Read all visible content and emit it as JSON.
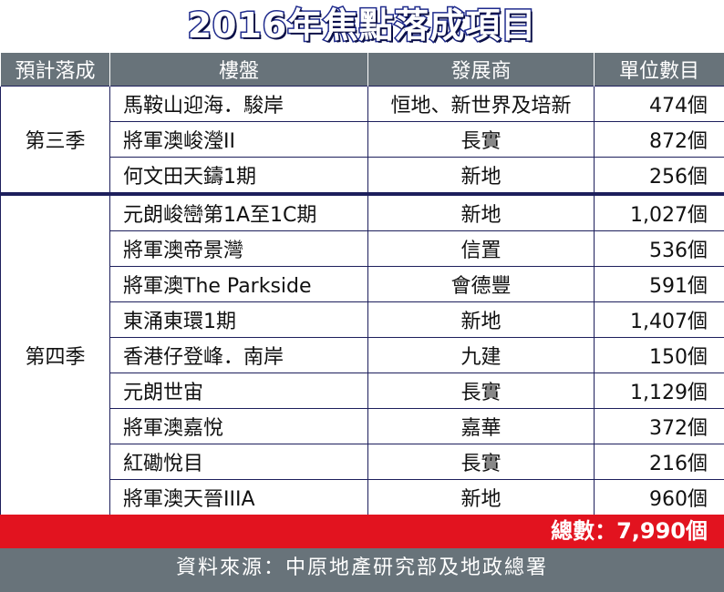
{
  "title": "2016年焦點落成項目",
  "headers": [
    "預計落成",
    "樓盤",
    "發展商",
    "單位數目"
  ],
  "groups": [
    {
      "season": "第三季",
      "rows": [
        {
          "name": "馬鞍山迎海．駿岸",
          "developer": "恒地、新世界及培新",
          "units": "474個"
        },
        {
          "name": "將軍澳峻瀅II",
          "developer": "長實",
          "units": "872個"
        },
        {
          "name": "何文田天鑄1期",
          "developer": "新地",
          "units": "256個"
        }
      ]
    },
    {
      "season": "第四季",
      "rows": [
        {
          "name": "元朗峻巒第1A至1C期",
          "developer": "新地",
          "units": "1,027個"
        },
        {
          "name": "將軍澳帝景灣",
          "developer": "信置",
          "units": "536個"
        },
        {
          "name": "將軍澳The Parkside",
          "developer": "會德豐",
          "units": "591個"
        },
        {
          "name": "東涌東環1期",
          "developer": "新地",
          "units": "1,407個"
        },
        {
          "name": "香港仔登峰．南岸",
          "developer": "九建",
          "units": "150個"
        },
        {
          "name": "元朗世宙",
          "developer": "長實",
          "units": "1,129個"
        },
        {
          "name": "將軍澳嘉悅",
          "developer": "嘉華",
          "units": "372個"
        },
        {
          "name": "紅磡悅目",
          "developer": "長實",
          "units": "216個"
        },
        {
          "name": "將軍澳天晉IIIA",
          "developer": "新地",
          "units": "960個"
        }
      ]
    }
  ],
  "total": "總數：7,990個",
  "source": "資料來源：中原地產研究部及地政總署"
}
